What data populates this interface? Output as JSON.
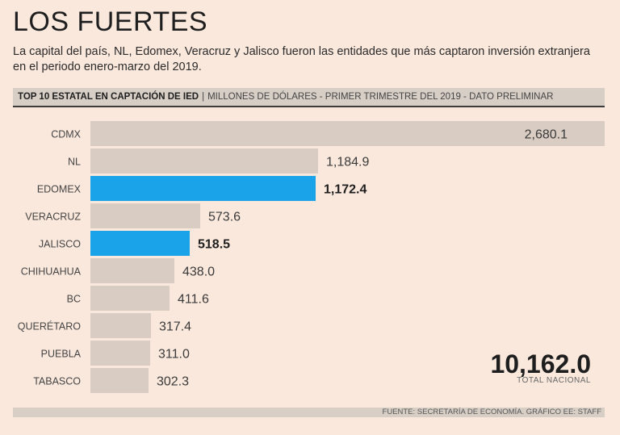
{
  "title": "LOS FUERTES",
  "subtitle": "La capital del país, NL, Edomex, Veracruz y Jalisco fueron las entidades que más captaron inversión extranjera en el periodo enero-marzo del 2019.",
  "header": {
    "bold": "TOP 10 ESTATAL EN CAPTACIÓN DE IED",
    "separator": "|",
    "rest": "MILLONES DE DÓLARES - PRIMER TRIMESTRE DEL 2019 - DATO PRELIMINAR"
  },
  "total": {
    "value": "10,162.0",
    "label": "TOTAL NACIONAL"
  },
  "footer": "FUENTE: SECRETARÍA DE ECONOMÍA. GRÁFICO EE: STAFF",
  "colors": {
    "bar": "#d8ccc3",
    "highlight": "#1aa3e8",
    "background": "#fbe8dd"
  },
  "chart_data": {
    "type": "bar",
    "orientation": "horizontal",
    "title": "TOP 10 ESTATAL EN CAPTACIÓN DE IED",
    "units": "Millones de dólares",
    "categories": [
      "CDMX",
      "NL",
      "EDOMEX",
      "VERACRUZ",
      "JALISCO",
      "CHIHUAHUA",
      "BC",
      "QUERÉTARO",
      "PUEBLA",
      "TABASCO"
    ],
    "values": [
      2680.1,
      1184.9,
      1172.4,
      573.6,
      518.5,
      438.0,
      411.6,
      317.4,
      311.0,
      302.3
    ],
    "labels": [
      "2,680.1",
      "1,184.9",
      "1,172.4",
      "573.6",
      "518.5",
      "438.0",
      "411.6",
      "317.4",
      "311.0",
      "302.3"
    ],
    "highlighted": [
      false,
      false,
      true,
      false,
      true,
      false,
      false,
      false,
      false,
      false
    ],
    "xlim": [
      0,
      2680.1
    ]
  }
}
